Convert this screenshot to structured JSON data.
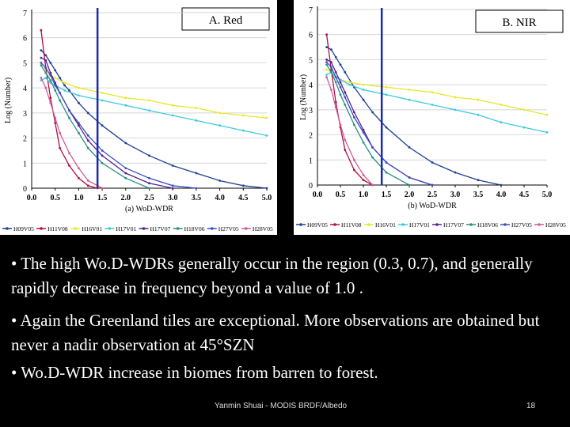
{
  "chart_data": [
    {
      "type": "line",
      "title": "A. Red",
      "xlabel": "(a) WoD-WDR",
      "ylabel": "Log (Number)",
      "xlim": [
        0,
        5
      ],
      "ylim": [
        0,
        7
      ],
      "x_ticks": [
        "0.0",
        "0.5",
        "1.0",
        "1.5",
        "2.0",
        "2.5",
        "3.0",
        "3.5",
        "4.0",
        "4.5",
        "5.0"
      ],
      "y_ticks": [
        "0",
        "1",
        "2",
        "3",
        "4",
        "5",
        "6",
        "7"
      ],
      "marker_x": 1.4,
      "grid": true,
      "legend_position": "bottom",
      "series": [
        {
          "name": "H09V05",
          "color": "#1f3f8f",
          "x": [
            0.2,
            0.3,
            0.4,
            0.5,
            0.6,
            0.7,
            0.8,
            1.0,
            1.2,
            1.5,
            2.0,
            2.5,
            3.0,
            3.5,
            4.0,
            4.5,
            5.0
          ],
          "y": [
            5.5,
            5.3,
            5.0,
            4.7,
            4.4,
            4.1,
            3.9,
            3.4,
            3.0,
            2.5,
            1.8,
            1.3,
            0.9,
            0.6,
            0.3,
            0.1,
            0
          ]
        },
        {
          "name": "H11V08",
          "color": "#b0103c",
          "x": [
            0.2,
            0.3,
            0.4,
            0.5,
            0.6,
            0.8,
            1.0,
            1.2,
            1.4
          ],
          "y": [
            6.3,
            4.8,
            3.6,
            2.6,
            1.6,
            0.9,
            0.4,
            0.1,
            0
          ]
        },
        {
          "name": "H16V01",
          "color": "#e8e82a",
          "x": [
            0.2,
            0.3,
            0.4,
            0.5,
            0.7,
            1.0,
            1.5,
            2.0,
            2.5,
            3.0,
            3.5,
            4.0,
            4.5,
            5.0
          ],
          "y": [
            4.9,
            4.6,
            4.5,
            4.4,
            4.2,
            4.0,
            3.8,
            3.6,
            3.5,
            3.3,
            3.2,
            3.0,
            2.9,
            2.8
          ]
        },
        {
          "name": "H17V01",
          "color": "#3cc8e0",
          "x": [
            0.2,
            0.3,
            0.4,
            0.5,
            0.7,
            1.0,
            1.5,
            2.0,
            2.5,
            3.0,
            3.5,
            4.0,
            4.5,
            5.0
          ],
          "y": [
            4.3,
            4.4,
            4.2,
            4.1,
            3.9,
            3.7,
            3.5,
            3.3,
            3.1,
            2.9,
            2.7,
            2.5,
            2.3,
            2.1
          ]
        },
        {
          "name": "H17V07",
          "color": "#5a1f8f",
          "x": [
            0.2,
            0.3,
            0.4,
            0.5,
            0.6,
            0.8,
            1.0,
            1.2,
            1.5,
            2.0,
            2.5,
            3.0
          ],
          "y": [
            5.2,
            5.1,
            4.6,
            4.2,
            3.8,
            3.1,
            2.5,
            1.9,
            1.3,
            0.6,
            0.2,
            0
          ]
        },
        {
          "name": "H18V06",
          "color": "#2a8f80",
          "x": [
            0.2,
            0.3,
            0.4,
            0.5,
            0.6,
            0.8,
            1.0,
            1.2,
            1.5,
            2.0,
            2.5
          ],
          "y": [
            4.9,
            4.6,
            4.3,
            3.9,
            3.5,
            2.8,
            2.2,
            1.6,
            1.0,
            0.4,
            0
          ]
        },
        {
          "name": "H27V05",
          "color": "#3a4fc0",
          "x": [
            0.2,
            0.3,
            0.4,
            0.5,
            0.6,
            0.8,
            1.0,
            1.2,
            1.5,
            2.0,
            2.5,
            3.0,
            3.5
          ],
          "y": [
            5.0,
            4.8,
            4.5,
            4.1,
            3.8,
            3.1,
            2.6,
            2.1,
            1.5,
            0.8,
            0.4,
            0.1,
            0
          ]
        },
        {
          "name": "H28V05",
          "color": "#d05a9a",
          "x": [
            0.2,
            0.3,
            0.4,
            0.5,
            0.6,
            0.8,
            1.0,
            1.2,
            1.5
          ],
          "y": [
            4.4,
            4.0,
            3.4,
            2.8,
            2.2,
            1.4,
            0.8,
            0.3,
            0
          ]
        }
      ]
    },
    {
      "type": "line",
      "title": "B. NIR",
      "xlabel": "(b) WoD-WDR",
      "ylabel": "Log (Number)",
      "xlim": [
        0,
        5
      ],
      "ylim": [
        0,
        7
      ],
      "x_ticks": [
        "0.0",
        "0.5",
        "1.0",
        "1.5",
        "2.0",
        "2.5",
        "3.0",
        "3.5",
        "4.0",
        "4.5",
        "5.0"
      ],
      "y_ticks": [
        "0",
        "1",
        "2",
        "3",
        "4",
        "5",
        "6",
        "7"
      ],
      "marker_x": 1.4,
      "grid": true,
      "legend_position": "bottom",
      "series": [
        {
          "name": "H09V05",
          "color": "#1f3f8f",
          "x": [
            0.2,
            0.3,
            0.4,
            0.5,
            0.6,
            0.8,
            1.0,
            1.2,
            1.5,
            2.0,
            2.5,
            3.0,
            3.5,
            4.0
          ],
          "y": [
            5.5,
            5.4,
            5.1,
            4.8,
            4.5,
            3.9,
            3.4,
            2.9,
            2.3,
            1.5,
            0.9,
            0.5,
            0.2,
            0
          ]
        },
        {
          "name": "H11V08",
          "color": "#b0103c",
          "x": [
            0.2,
            0.3,
            0.4,
            0.5,
            0.6,
            0.8,
            1.0,
            1.2
          ],
          "y": [
            6.0,
            4.6,
            3.3,
            2.3,
            1.4,
            0.6,
            0.2,
            0
          ]
        },
        {
          "name": "H16V01",
          "color": "#e8e82a",
          "x": [
            0.2,
            0.3,
            0.4,
            0.5,
            0.7,
            1.0,
            1.5,
            2.0,
            2.5,
            3.0,
            3.5,
            4.0,
            4.5,
            5.0
          ],
          "y": [
            4.6,
            4.5,
            4.3,
            4.2,
            4.1,
            4.0,
            3.9,
            3.8,
            3.7,
            3.5,
            3.4,
            3.2,
            3.0,
            2.8
          ]
        },
        {
          "name": "H17V01",
          "color": "#3cc8e0",
          "x": [
            0.2,
            0.3,
            0.4,
            0.5,
            0.7,
            1.0,
            1.5,
            2.0,
            2.5,
            3.0,
            3.5,
            4.0,
            4.5,
            5.0
          ],
          "y": [
            4.4,
            4.5,
            4.3,
            4.2,
            4.0,
            3.8,
            3.6,
            3.4,
            3.2,
            3.0,
            2.8,
            2.5,
            2.3,
            2.1
          ]
        },
        {
          "name": "H17V07",
          "color": "#5a1f8f",
          "x": [
            0.2,
            0.3,
            0.4,
            0.5,
            0.6,
            0.8,
            1.0,
            1.2,
            1.5,
            2.0,
            2.5
          ],
          "y": [
            5.0,
            4.9,
            4.5,
            4.1,
            3.7,
            2.9,
            2.2,
            1.5,
            0.9,
            0.3,
            0
          ]
        },
        {
          "name": "H18V06",
          "color": "#2a8f80",
          "x": [
            0.2,
            0.3,
            0.4,
            0.5,
            0.6,
            0.8,
            1.0,
            1.2,
            1.5,
            2.0
          ],
          "y": [
            4.8,
            4.5,
            4.1,
            3.6,
            3.2,
            2.4,
            1.7,
            1.1,
            0.5,
            0
          ]
        },
        {
          "name": "H27V05",
          "color": "#3a4fc0",
          "x": [
            0.2,
            0.3,
            0.4,
            0.5,
            0.6,
            0.8,
            1.0,
            1.2,
            1.5,
            2.0,
            2.5
          ],
          "y": [
            4.9,
            4.7,
            4.3,
            3.9,
            3.5,
            2.7,
            2.1,
            1.5,
            0.9,
            0.3,
            0
          ]
        },
        {
          "name": "H28V05",
          "color": "#d05a9a",
          "x": [
            0.2,
            0.3,
            0.4,
            0.5,
            0.6,
            0.8,
            1.0,
            1.2
          ],
          "y": [
            4.3,
            3.8,
            3.1,
            2.4,
            1.8,
            1.0,
            0.4,
            0
          ]
        }
      ]
    }
  ],
  "bullets": [
    "• The high Wo.D-WDRs generally occur in the region (0.3, 0.7), and generally rapidly decrease in frequency beyond a value of 1.0 .",
    "• Again the Greenland tiles are exceptional. More observations are obtained but never a nadir observation at 45°SZN",
    "• Wo.D-WDR increase in biomes from barren to forest."
  ],
  "footer": {
    "text": "Yanmin Shuai - MODIS BRDF/Albedo",
    "page": "18"
  }
}
